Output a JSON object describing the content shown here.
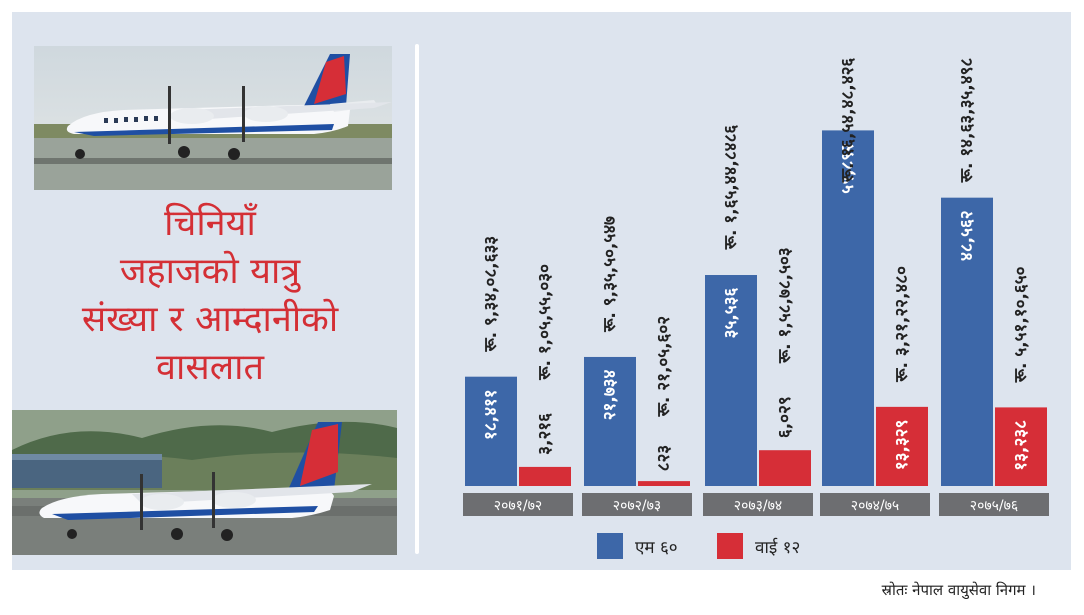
{
  "title_lines": [
    "चिनियाँ",
    "जहाजको यात्रु",
    "संख्या र आम्दानीको",
    "वासलात"
  ],
  "source": "स्रोतः नेपाल वायुसेवा निगम ।",
  "colors": {
    "ma60": "#3d67a8",
    "y12": "#d62e37",
    "year_bar": "#6d6e71",
    "title": "#d42f35",
    "panel": "#dde4ee"
  },
  "photos": [
    {
      "name": "nepal-airlines-ma60-photo-1",
      "livery": "Nepal Airlines"
    },
    {
      "name": "nepal-airlines-ma60-photo-2",
      "livery": "Nepal Airlines"
    }
  ],
  "chart_data": {
    "type": "bar",
    "categories": [
      "२०७१/७२",
      "२०७२/७३",
      "२०७३/७४",
      "२०७४/७५",
      "२०७५/७६"
    ],
    "legend": [
      "एम ६०",
      "वाई १२"
    ],
    "series": [
      {
        "name": "एम ६०",
        "values": [
          18411,
          21734,
          35536,
          59892,
          48562
        ],
        "value_labels": [
          "१८,४११",
          "२१,७३४",
          "३५,५३६",
          "५९,८९२",
          "४८,५६२"
        ],
        "revenue_labels": [
          "रू. ९,३४,०८,६३३",
          "रू. ९,३५,५०,५४७",
          "रू. १,६५,४४,८४८६",
          "रू. १६,५४,४८,४२६",
          "रू. १४,६३,३५,४९८"
        ]
      },
      {
        "name": "वाई १२",
        "values": [
          3216,
          823,
          6029,
          13329,
          13238
        ],
        "value_labels": [
          "३,२१६",
          "८२३",
          "६,०२९",
          "१३,३२९",
          "१३,२३८"
        ],
        "revenue_labels": [
          "रू. १,०५,५५,०३०",
          "रू. २१,०५,६०२",
          "रू. १,५८,७८,५०३",
          "रू. ३,२१,२२,४८०",
          "रू. ५,५१,१०,६५०"
        ]
      }
    ],
    "ylim": [
      0,
      64000
    ],
    "grid": false,
    "legend_position": "bottom"
  }
}
